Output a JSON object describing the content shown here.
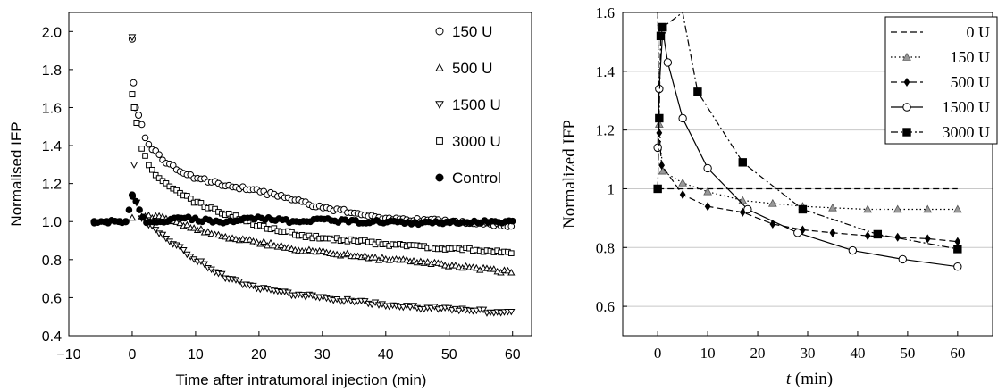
{
  "chart_data": [
    {
      "type": "scatter",
      "xlabel": "Time after intratumoral injection (min)",
      "ylabel": "Normalised IFP",
      "xlim": [
        -10,
        63
      ],
      "ylim": [
        0.4,
        2.1
      ],
      "xticks": [
        "−10",
        "0",
        "10",
        "20",
        "30",
        "40",
        "50",
        "60"
      ],
      "yticks": [
        "0.4",
        "0.6",
        "0.8",
        "1.0",
        "1.2",
        "1.4",
        "1.6",
        "1.8",
        "2.0"
      ],
      "legend_position": "top-right",
      "series": [
        {
          "name": "150 U",
          "marker": "circle-open",
          "points": [
            [
              0,
              1.96
            ],
            [
              0.2,
              1.73
            ],
            [
              0.5,
              1.6
            ],
            [
              1,
              1.56
            ],
            [
              2,
              1.45
            ],
            [
              3,
              1.39
            ],
            [
              5,
              1.32
            ],
            [
              8,
              1.26
            ],
            [
              10,
              1.23
            ],
            [
              15,
              1.19
            ],
            [
              20,
              1.16
            ],
            [
              25,
              1.12
            ],
            [
              30,
              1.07
            ],
            [
              35,
              1.05
            ],
            [
              40,
              1.02
            ],
            [
              45,
              1.01
            ],
            [
              50,
              1.0
            ],
            [
              55,
              0.99
            ],
            [
              60,
              0.98
            ]
          ]
        },
        {
          "name": "500 U",
          "marker": "triangle-up-open",
          "points": [
            [
              0,
              1.02
            ],
            [
              2,
              1.03
            ],
            [
              5,
              1.02
            ],
            [
              8,
              0.98
            ],
            [
              10,
              0.96
            ],
            [
              15,
              0.92
            ],
            [
              20,
              0.89
            ],
            [
              25,
              0.86
            ],
            [
              30,
              0.84
            ],
            [
              35,
              0.82
            ],
            [
              40,
              0.8
            ],
            [
              45,
              0.79
            ],
            [
              50,
              0.77
            ],
            [
              55,
              0.75
            ],
            [
              60,
              0.73
            ]
          ]
        },
        {
          "name": "1500 U",
          "marker": "triangle-down-open",
          "points": [
            [
              0,
              1.97
            ],
            [
              0.3,
              1.3
            ],
            [
              0.7,
              1.1
            ],
            [
              1.5,
              1.02
            ],
            [
              3,
              0.98
            ],
            [
              5,
              0.92
            ],
            [
              8,
              0.85
            ],
            [
              10,
              0.8
            ],
            [
              15,
              0.7
            ],
            [
              20,
              0.65
            ],
            [
              25,
              0.62
            ],
            [
              30,
              0.6
            ],
            [
              35,
              0.58
            ],
            [
              40,
              0.56
            ],
            [
              45,
              0.55
            ],
            [
              50,
              0.54
            ],
            [
              55,
              0.53
            ],
            [
              60,
              0.52
            ]
          ]
        },
        {
          "name": "3000 U",
          "marker": "square-open",
          "points": [
            [
              0,
              1.67
            ],
            [
              0.3,
              1.6
            ],
            [
              0.7,
              1.52
            ],
            [
              1.5,
              1.38
            ],
            [
              3,
              1.27
            ],
            [
              5,
              1.2
            ],
            [
              8,
              1.14
            ],
            [
              10,
              1.1
            ],
            [
              15,
              1.04
            ],
            [
              20,
              0.98
            ],
            [
              25,
              0.94
            ],
            [
              30,
              0.91
            ],
            [
              35,
              0.9
            ],
            [
              40,
              0.88
            ],
            [
              45,
              0.87
            ],
            [
              50,
              0.86
            ],
            [
              55,
              0.85
            ],
            [
              60,
              0.84
            ]
          ]
        },
        {
          "name": "Control",
          "marker": "circle-filled",
          "points": [
            [
              -6,
              1.0
            ],
            [
              -4,
              1.0
            ],
            [
              -2,
              1.0
            ],
            [
              -1,
              1.0
            ],
            [
              0,
              1.14
            ],
            [
              2,
              1.0
            ],
            [
              5,
              1.0
            ],
            [
              8,
              1.02
            ],
            [
              10,
              1.01
            ],
            [
              15,
              1.0
            ],
            [
              20,
              1.02
            ],
            [
              25,
              1.0
            ],
            [
              30,
              1.01
            ],
            [
              35,
              1.0
            ],
            [
              40,
              1.0
            ],
            [
              45,
              0.99
            ],
            [
              50,
              1.0
            ],
            [
              55,
              1.0
            ],
            [
              60,
              1.0
            ]
          ]
        }
      ]
    },
    {
      "type": "line",
      "xlabel": "t (min)",
      "ylabel": "Normalized IFP",
      "xlim": [
        -7,
        67
      ],
      "ylim": [
        0.5,
        1.6
      ],
      "grid": true,
      "xticks": [
        "0",
        "10",
        "20",
        "30",
        "40",
        "50",
        "60"
      ],
      "yticks": [
        "0.6",
        "0.8",
        "1",
        "1.2",
        "1.4",
        "1.6"
      ],
      "legend_position": "top-right",
      "series": [
        {
          "name": "0 U",
          "style": "dashed",
          "marker": "none",
          "points": [
            [
              0,
              1.0
            ],
            [
              60,
              1.0
            ]
          ]
        },
        {
          "name": "150 U",
          "style": "dotted",
          "marker": "triangle-filled",
          "points": [
            [
              0,
              1.6
            ],
            [
              0.3,
              1.22
            ],
            [
              1,
              1.06
            ],
            [
              5,
              1.02
            ],
            [
              10,
              0.99
            ],
            [
              17,
              0.96
            ],
            [
              23,
              0.95
            ],
            [
              29,
              0.94
            ],
            [
              35,
              0.935
            ],
            [
              42,
              0.93
            ],
            [
              48,
              0.93
            ],
            [
              54,
              0.93
            ],
            [
              60,
              0.93
            ]
          ]
        },
        {
          "name": "500 U",
          "style": "dashed",
          "marker": "diamond-filled",
          "points": [
            [
              0,
              1.6
            ],
            [
              0.3,
              1.19
            ],
            [
              0.8,
              1.08
            ],
            [
              5,
              0.98
            ],
            [
              10,
              0.94
            ],
            [
              17,
              0.92
            ],
            [
              23,
              0.88
            ],
            [
              29,
              0.86
            ],
            [
              35,
              0.85
            ],
            [
              42,
              0.84
            ],
            [
              48,
              0.835
            ],
            [
              54,
              0.83
            ],
            [
              60,
              0.82
            ]
          ]
        },
        {
          "name": "1500 U",
          "style": "solid",
          "marker": "circle-open",
          "points": [
            [
              0,
              1.14
            ],
            [
              0.3,
              1.34
            ],
            [
              1,
              1.54
            ],
            [
              2,
              1.43
            ],
            [
              5,
              1.24
            ],
            [
              10,
              1.07
            ],
            [
              18,
              0.93
            ],
            [
              28,
              0.85
            ],
            [
              39,
              0.79
            ],
            [
              49,
              0.76
            ],
            [
              60,
              0.735
            ]
          ]
        },
        {
          "name": "3000 U",
          "style": "dashdot",
          "marker": "square-filled",
          "points": [
            [
              0,
              1.0
            ],
            [
              0.3,
              1.24
            ],
            [
              0.6,
              1.52
            ],
            [
              1,
              1.55
            ],
            [
              5,
              1.6
            ],
            [
              8,
              1.33
            ],
            [
              17,
              1.09
            ],
            [
              29,
              0.93
            ],
            [
              44,
              0.845
            ],
            [
              60,
              0.795
            ]
          ]
        }
      ]
    }
  ]
}
